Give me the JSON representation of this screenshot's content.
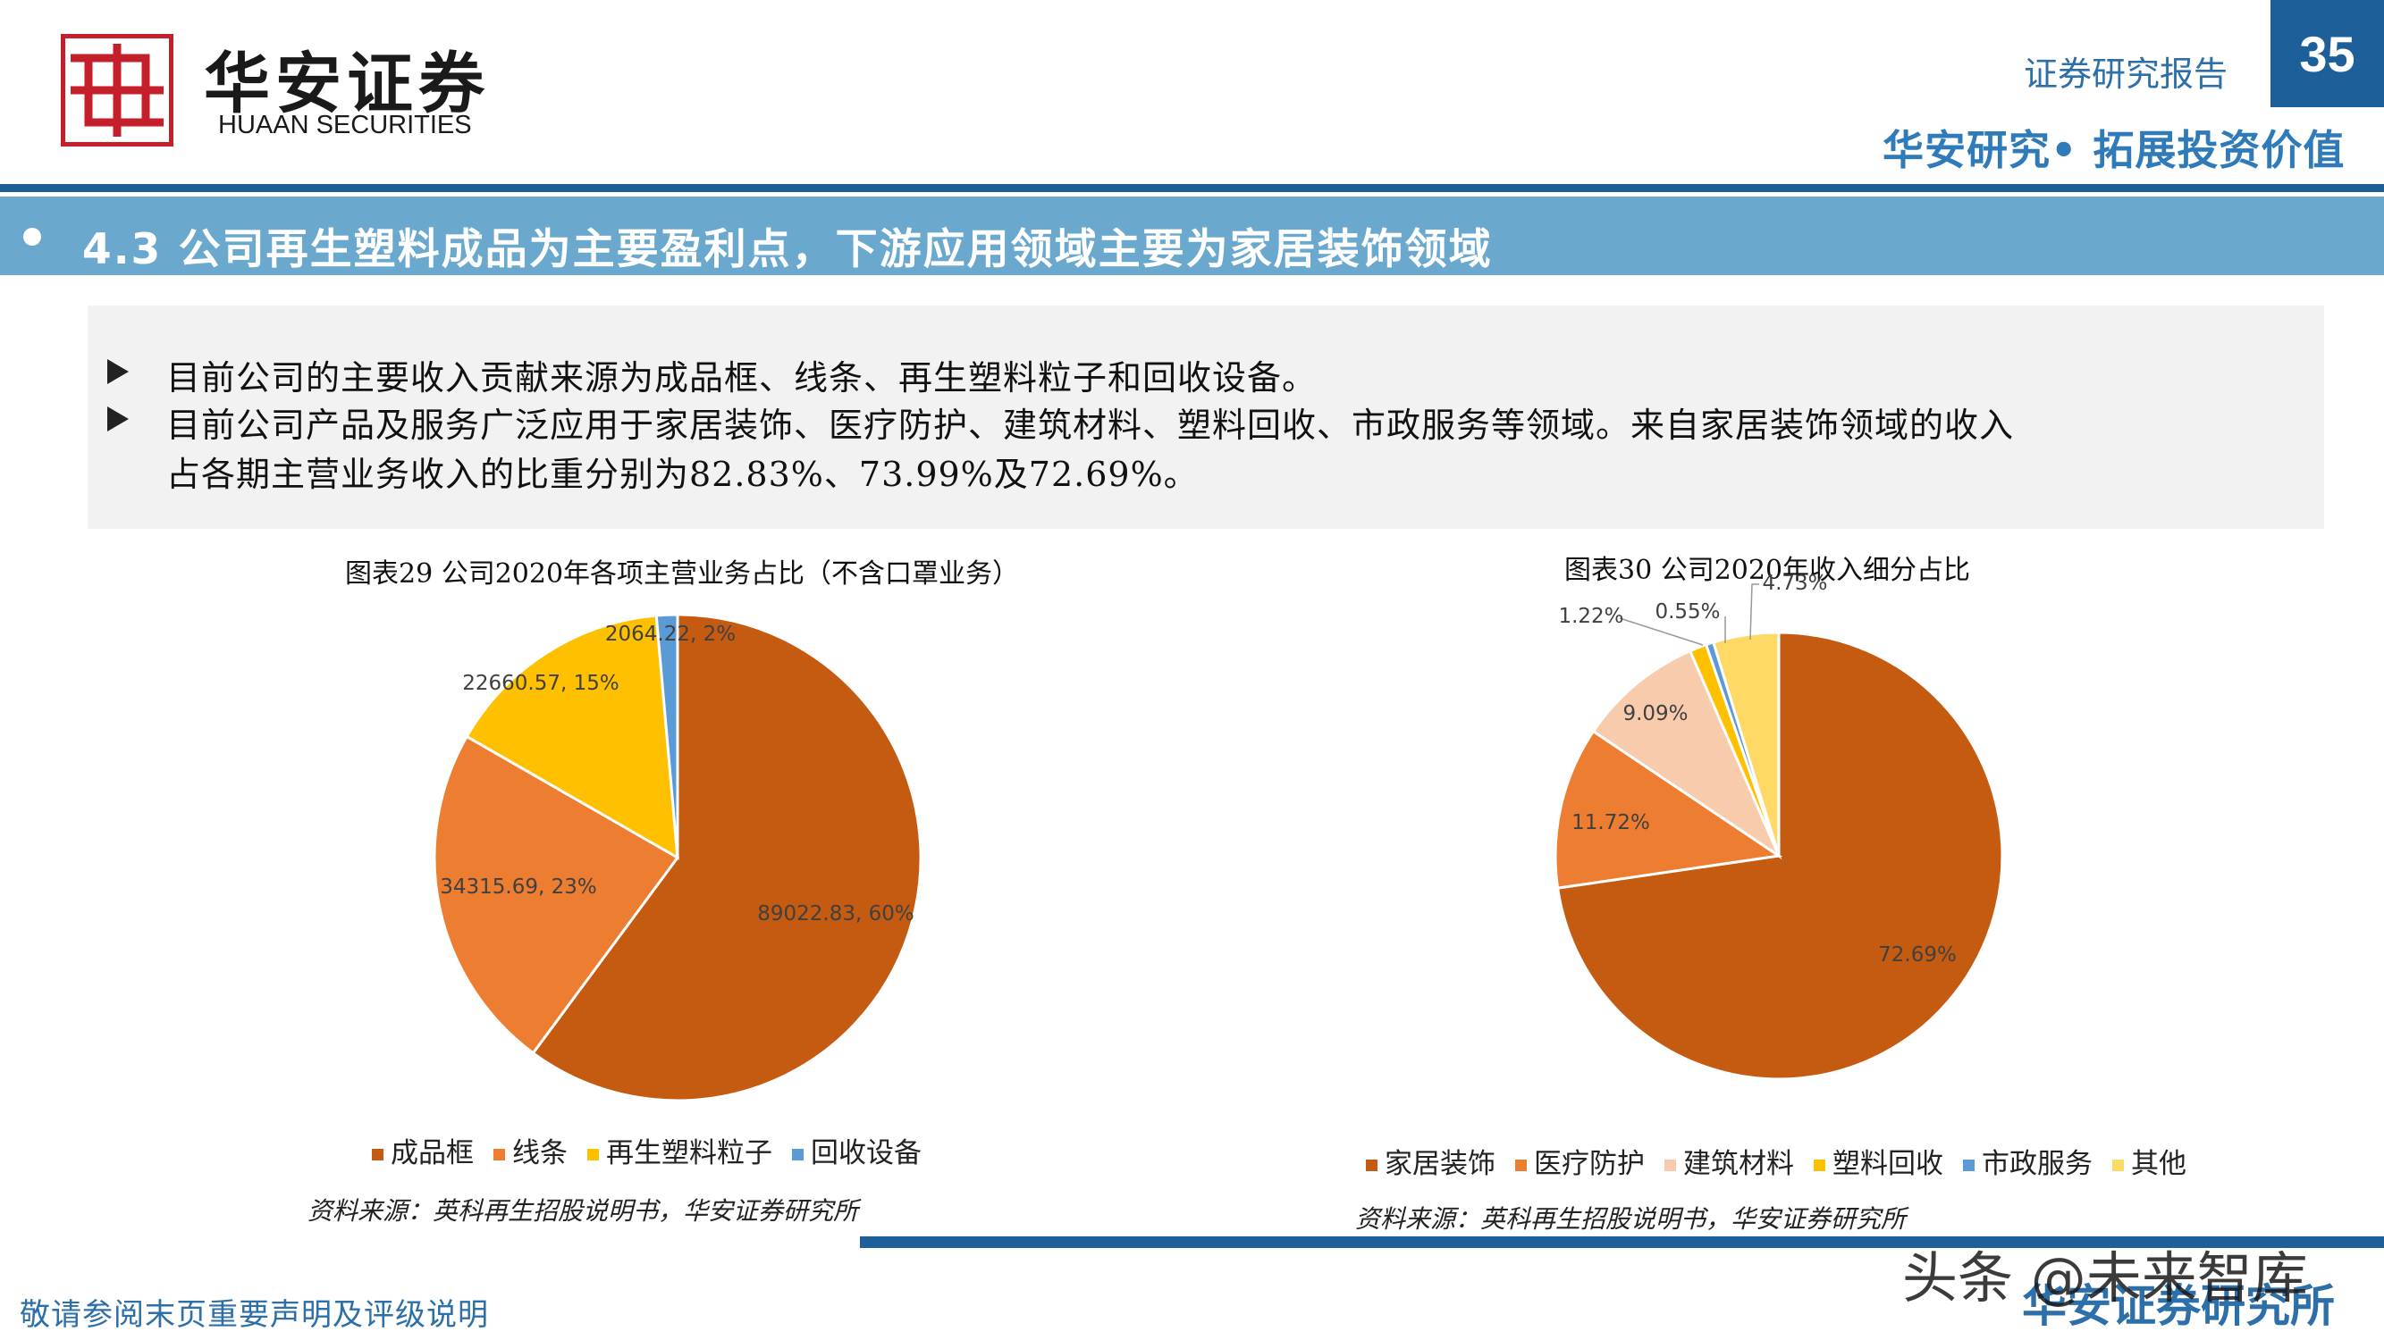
{
  "header": {
    "logo_cn": "华安证券",
    "logo_en": "HUAAN SECURITIES",
    "report_type": "证券研究报告",
    "page_number": "35",
    "slogan": "华安研究• 拓展投资价值"
  },
  "section": {
    "title": "4.3 公司再生塑料成品为主要盈利点，下游应用领域主要为家居装饰领域"
  },
  "summary": {
    "bullets": [
      "目前公司的主要收入贡献来源为成品框、线条、再生塑料粒子和回收设备。",
      "目前公司产品及服务广泛应用于家居装饰、医疗防护、建筑材料、塑料回收、市政服务等领域。来自家居装饰领域的收入",
      "占各期主营业务收入的比重分别为82.83%、73.99%及72.69%。"
    ]
  },
  "chart_data": [
    {
      "type": "pie",
      "title": "图表29  公司2020年各项主营业务占比（不含口罩业务）",
      "categories": [
        "成品框",
        "线条",
        "再生塑料粒子",
        "回收设备"
      ],
      "values": [
        89022.83,
        34315.69,
        22660.57,
        2064.22
      ],
      "percent": [
        60,
        23,
        15,
        2
      ],
      "data_labels": [
        "89022.83, 60%",
        "34315.69, 23%",
        "22660.57, 15%",
        "2064.22, 2%"
      ],
      "colors": [
        "#c55a11",
        "#ed7d31",
        "#ffc000",
        "#5b9bd5"
      ],
      "legend_position": "bottom",
      "source": "资料来源：英科再生招股说明书，华安证券研究所"
    },
    {
      "type": "pie",
      "title": "图表30  公司2020年收入细分占比",
      "categories": [
        "家居装饰",
        "医疗防护",
        "建筑材料",
        "塑料回收",
        "市政服务",
        "其他"
      ],
      "values": [
        72.69,
        11.72,
        9.09,
        1.22,
        0.55,
        4.73
      ],
      "data_labels": [
        "72.69%",
        "11.72%",
        "9.09%",
        "1.22%",
        "0.55%",
        "4.73%"
      ],
      "colors": [
        "#c55a11",
        "#ed7d31",
        "#f8cbad",
        "#ffc000",
        "#5b9bd5",
        "#ffd966"
      ],
      "legend_position": "bottom",
      "source": "资料来源：英科再生招股说明书，华安证券研究所"
    }
  ],
  "footer": {
    "disclaimer": "敬请参阅末页重要声明及评级说明",
    "org": "华安证券研究所",
    "watermark": "头条 @未来智库"
  }
}
